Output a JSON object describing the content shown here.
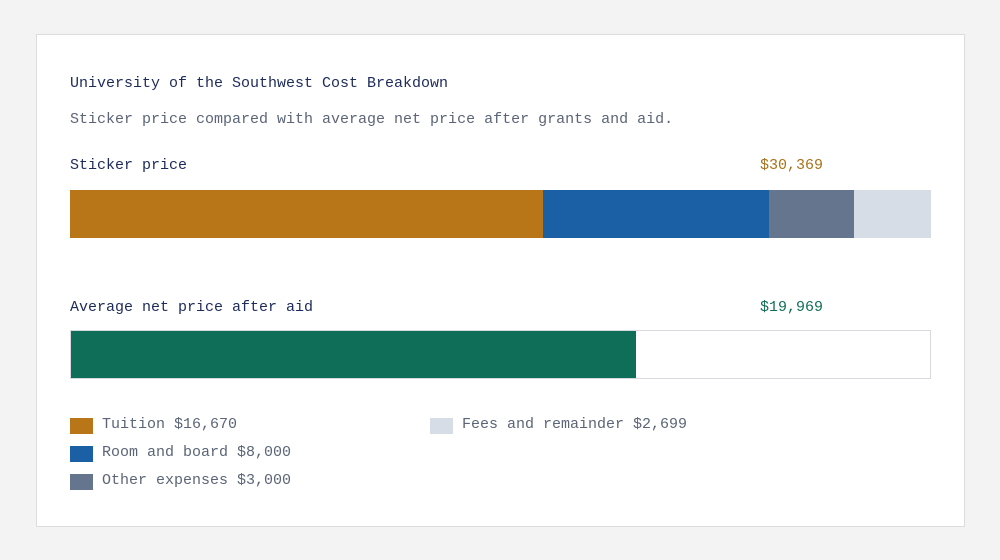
{
  "title": "University of the Southwest Cost Breakdown",
  "subtitle": "Sticker price compared with average net price after grants and aid.",
  "sticker": {
    "label": "Sticker price",
    "total": 30369,
    "total_label": "$30,369",
    "total_color": "#a8721a",
    "segments": [
      {
        "name": "Tuition",
        "value": 16670,
        "value_label": "$16,670",
        "color": "#b87618"
      },
      {
        "name": "Room and board",
        "value": 8000,
        "value_label": "$8,000",
        "color": "#1b5fa5"
      },
      {
        "name": "Other expenses",
        "value": 3000,
        "value_label": "$3,000",
        "color": "#66758e"
      },
      {
        "name": "Fees and remainder",
        "value": 2699,
        "value_label": "$2,699",
        "color": "#d7dde7"
      }
    ]
  },
  "net": {
    "label": "Average net price after aid",
    "total": 19969,
    "total_label": "$19,969",
    "color": "#0f6e57"
  }
}
